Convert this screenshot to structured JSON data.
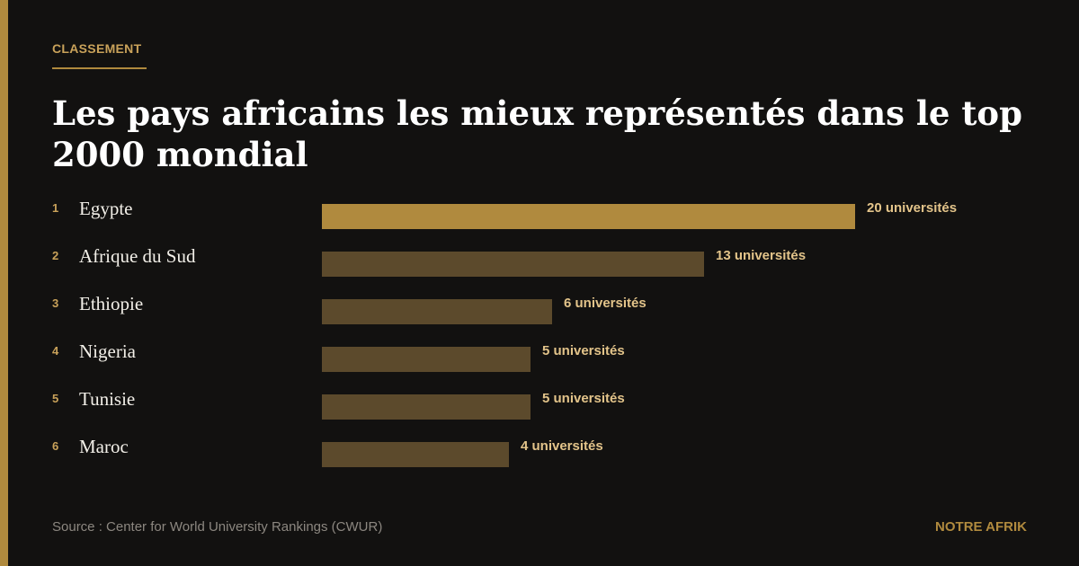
{
  "kicker": "CLASSEMENT",
  "source": "Source : Center for World University Rankings (CWUR)",
  "brand": "NOTRE AFRIK",
  "colors": {
    "background": "#121110",
    "accent": "#b08a3e",
    "bar_primary": "#b08a3e",
    "bar_secondary": "#5c4a2c",
    "value_text": "#e3c48a",
    "title_text": "#ffffff"
  },
  "chart_data": {
    "type": "bar",
    "orientation": "horizontal",
    "title": "Les pays africains les mieux représentés dans le top 2000 mondial",
    "categories": [
      "Egypte",
      "Afrique du Sud",
      "Ethiopie",
      "Nigeria",
      "Tunisie",
      "Maroc"
    ],
    "ranks": [
      "1",
      "2",
      "3",
      "4",
      "5",
      "6"
    ],
    "values": [
      20,
      13,
      6,
      5,
      5,
      4
    ],
    "value_labels": [
      "20 universités",
      "13 universités",
      "6 universités",
      "5 universités",
      "5 universités",
      "4 universités"
    ],
    "xlabel": "",
    "ylabel": "",
    "grid": false,
    "legend": "none"
  }
}
